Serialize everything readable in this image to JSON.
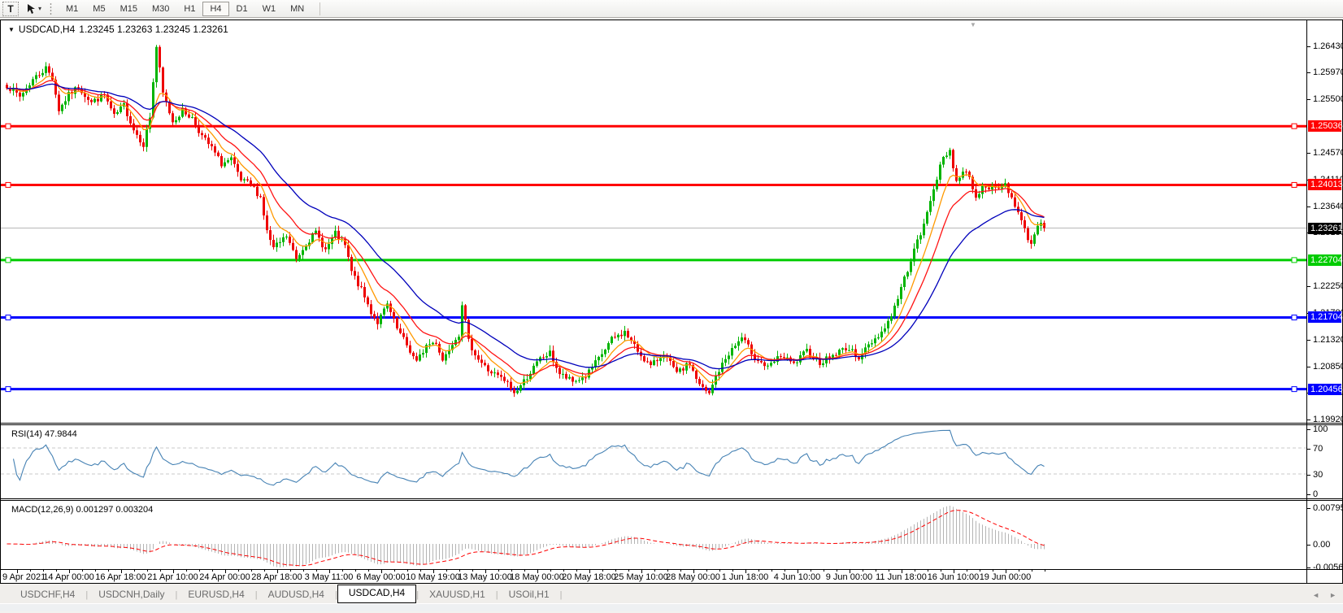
{
  "toolbar": {
    "text_tool": "T",
    "timeframes": [
      "M1",
      "M5",
      "M15",
      "M30",
      "H1",
      "H4",
      "D1",
      "W1",
      "MN"
    ],
    "active_timeframe": "H4"
  },
  "chart": {
    "symbol": "USDCAD,H4",
    "quotes": "1.23245 1.23263 1.23245 1.23261"
  },
  "tabs": {
    "items": [
      "USDCHF,H4",
      "USDCNH,Daily",
      "EURUSD,H4",
      "AUDUSD,H4",
      "USDCAD,H4",
      "XAUUSD,H1",
      "USOil,H1"
    ],
    "active": "USDCAD,H4"
  },
  "chart_data": {
    "type": "candlestick",
    "symbol": "USDCAD",
    "timeframe": "H4",
    "ohlc_display": {
      "open": "1.23245",
      "high": "1.23263",
      "low": "1.23245",
      "close": "1.23261"
    },
    "num_candles": 320,
    "price_axis": {
      "max": 1.2688,
      "min": 1.1987,
      "ticks": [
        "1.26430",
        "1.25970",
        "1.25500",
        "1.24570",
        "1.24110",
        "1.23640",
        "1.23180",
        "1.22250",
        "1.21780",
        "1.21320",
        "1.20850",
        "1.20390",
        "1.19920"
      ]
    },
    "x_labels": [
      "9 Apr 2021",
      "14 Apr 00:00",
      "16 Apr 18:00",
      "21 Apr 10:00",
      "24 Apr 00:00",
      "28 Apr 18:00",
      "3 May 11:00",
      "6 May 00:00",
      "10 May 19:00",
      "13 May 10:00",
      "18 May 00:00",
      "20 May 18:00",
      "25 May 10:00",
      "28 May 00:00",
      "1 Jun 18:00",
      "4 Jun 10:00",
      "9 Jun 00:00",
      "11 Jun 18:00",
      "16 Jun 10:00",
      "19 Jun 00:00"
    ],
    "candles_per_label": 16,
    "first_label_candle": 3,
    "close_anchors": [
      [
        0,
        1.2575
      ],
      [
        4,
        1.2555
      ],
      [
        8,
        1.2585
      ],
      [
        12,
        1.2605
      ],
      [
        14,
        1.2588
      ],
      [
        16,
        1.2532
      ],
      [
        19,
        1.2558
      ],
      [
        22,
        1.2572
      ],
      [
        26,
        1.2545
      ],
      [
        30,
        1.2558
      ],
      [
        33,
        1.252
      ],
      [
        36,
        1.254
      ],
      [
        39,
        1.2498
      ],
      [
        42,
        1.2472
      ],
      [
        44,
        1.252
      ],
      [
        46,
        1.2642
      ],
      [
        48,
        1.256
      ],
      [
        51,
        1.2512
      ],
      [
        54,
        1.253
      ],
      [
        57,
        1.2518
      ],
      [
        60,
        1.2486
      ],
      [
        63,
        1.2465
      ],
      [
        66,
        1.2438
      ],
      [
        69,
        1.2445
      ],
      [
        72,
        1.2408
      ],
      [
        75,
        1.2402
      ],
      [
        78,
        1.238
      ],
      [
        80,
        1.232
      ],
      [
        82,
        1.229
      ],
      [
        86,
        1.2312
      ],
      [
        89,
        1.2272
      ],
      [
        92,
        1.23
      ],
      [
        95,
        1.2318
      ],
      [
        98,
        1.2288
      ],
      [
        101,
        1.2316
      ],
      [
        104,
        1.2295
      ],
      [
        106,
        1.225
      ],
      [
        109,
        1.2218
      ],
      [
        112,
        1.218
      ],
      [
        114,
        1.2162
      ],
      [
        117,
        1.2192
      ],
      [
        120,
        1.215
      ],
      [
        123,
        1.2122
      ],
      [
        126,
        1.2092
      ],
      [
        129,
        1.2122
      ],
      [
        132,
        1.2128
      ],
      [
        134,
        1.2096
      ],
      [
        137,
        1.2128
      ],
      [
        139,
        1.2142
      ],
      [
        140,
        1.2196
      ],
      [
        142,
        1.2128
      ],
      [
        145,
        1.2098
      ],
      [
        148,
        1.2078
      ],
      [
        151,
        1.2068
      ],
      [
        154,
        1.2055
      ],
      [
        156,
        1.2038
      ],
      [
        158,
        1.2052
      ],
      [
        161,
        1.2075
      ],
      [
        164,
        1.2098
      ],
      [
        167,
        1.2108
      ],
      [
        170,
        1.2072
      ],
      [
        174,
        1.2058
      ],
      [
        178,
        1.2068
      ],
      [
        182,
        1.2098
      ],
      [
        186,
        1.2132
      ],
      [
        190,
        1.2145
      ],
      [
        194,
        1.2112
      ],
      [
        198,
        1.2085
      ],
      [
        202,
        1.2108
      ],
      [
        206,
        1.2072
      ],
      [
        210,
        1.209
      ],
      [
        213,
        1.2052
      ],
      [
        216,
        1.2036
      ],
      [
        218,
        1.2068
      ],
      [
        222,
        1.2108
      ],
      [
        226,
        1.2135
      ],
      [
        230,
        1.2102
      ],
      [
        234,
        1.2082
      ],
      [
        238,
        1.2104
      ],
      [
        242,
        1.2088
      ],
      [
        246,
        1.2112
      ],
      [
        250,
        1.2092
      ],
      [
        254,
        1.2104
      ],
      [
        258,
        1.2118
      ],
      [
        262,
        1.2102
      ],
      [
        266,
        1.2128
      ],
      [
        270,
        1.2152
      ],
      [
        273,
        1.2188
      ],
      [
        276,
        1.2238
      ],
      [
        279,
        1.2288
      ],
      [
        282,
        1.233
      ],
      [
        285,
        1.2398
      ],
      [
        288,
        1.2448
      ],
      [
        290,
        1.2462
      ],
      [
        292,
        1.2408
      ],
      [
        295,
        1.2428
      ],
      [
        298,
        1.2382
      ],
      [
        301,
        1.2402
      ],
      [
        304,
        1.2392
      ],
      [
        307,
        1.2402
      ],
      [
        310,
        1.2368
      ],
      [
        313,
        1.2322
      ],
      [
        315,
        1.2298
      ],
      [
        317,
        1.2335
      ],
      [
        319,
        1.23261
      ]
    ],
    "last_close": 1.23261,
    "bull_color": "#00b400",
    "bear_color": "#ee0000",
    "ma_lines": [
      {
        "name": "fast",
        "period": 8,
        "color": "#ff9900"
      },
      {
        "name": "medium",
        "period": 16,
        "color": "#ff1414"
      },
      {
        "name": "slow",
        "period": 34,
        "color": "#0000bb"
      }
    ],
    "hlines": [
      {
        "value": 1.25036,
        "label": "1.25036",
        "color": "#ff0000"
      },
      {
        "value": 1.24013,
        "label": "1.24013",
        "color": "#ff0000"
      },
      {
        "value": 1.22704,
        "label": "1.22704",
        "color": "#00cc00"
      },
      {
        "value": 1.21704,
        "label": "1.21704",
        "color": "#0000ff"
      },
      {
        "value": 1.20456,
        "label": "1.20456",
        "color": "#0000ff"
      }
    ],
    "current_price": {
      "value": 1.23261,
      "label": "1.23261",
      "bg": "#000000"
    },
    "rsi": {
      "label": "RSI(14) 47.9844",
      "period": 14,
      "value": 47.9844,
      "color": "#4682b4",
      "levels": [
        70,
        30
      ],
      "axis_ticks": [
        "100",
        "70",
        "30",
        "0"
      ]
    },
    "macd": {
      "label": "MACD(12,26,9) 0.001297 0.003204",
      "fast": 12,
      "slow": 26,
      "signal": 9,
      "macd_value": 0.001297,
      "signal_value": 0.003204,
      "axis_ticks": [
        "0.007959",
        "0.00",
        "-0.005663"
      ],
      "histogram_color": "#b4b4b4",
      "signal_color": "#ff0000"
    }
  }
}
